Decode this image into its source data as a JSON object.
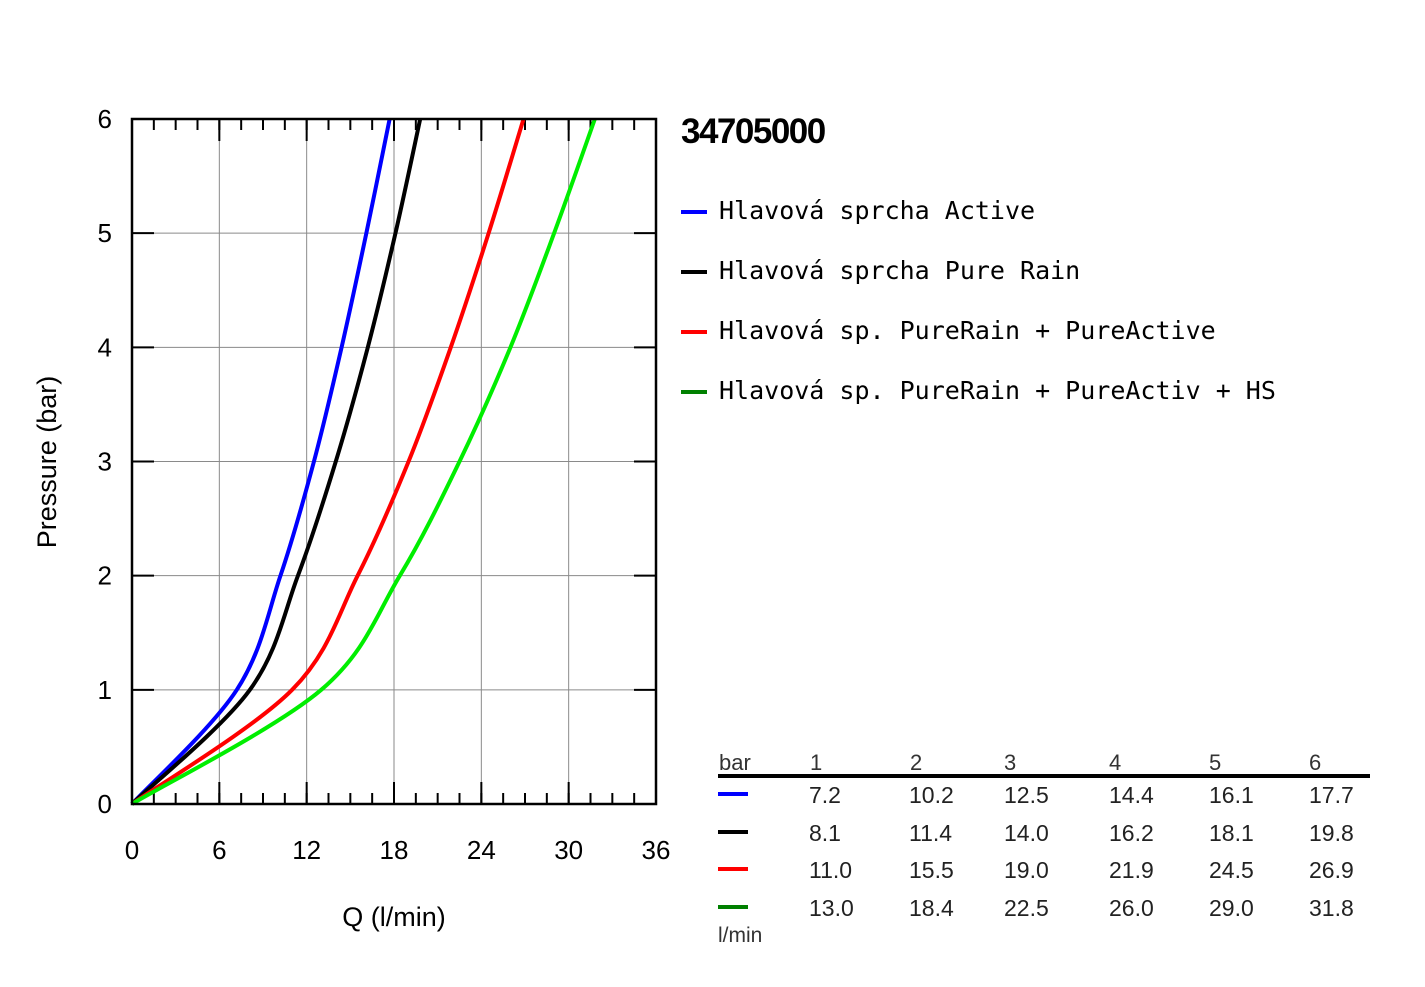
{
  "chart_data": {
    "type": "line",
    "title": "34705000",
    "xlabel": "Q (l/min)",
    "ylabel": "Pressure (bar)",
    "xlim": [
      0,
      36
    ],
    "ylim": [
      0,
      6
    ],
    "xticks": [
      "0",
      "6",
      "12",
      "18",
      "24",
      "30",
      "36"
    ],
    "yticks": [
      "0",
      "1",
      "2",
      "3",
      "4",
      "5",
      "6"
    ],
    "grid": true,
    "legend_position": "right",
    "series": [
      {
        "name": "Hlavová sprcha Active",
        "color": "#0000ff",
        "flow": [
          0,
          7.2,
          10.2,
          12.5,
          14.4,
          16.1,
          17.7
        ]
      },
      {
        "name": "Hlavová sprcha Pure Rain",
        "color": "#000000",
        "flow": [
          0,
          8.1,
          11.4,
          14.0,
          16.2,
          18.1,
          19.8
        ]
      },
      {
        "name": "Hlavová sp. PureRain + PureActive",
        "color": "#ff0000",
        "flow": [
          0,
          11.0,
          15.5,
          19.0,
          21.9,
          24.5,
          26.9
        ]
      },
      {
        "name": "Hlavová sp. PureRain + PureActiv + HS",
        "color": "#00ee00",
        "legend_color": "#008000",
        "flow": [
          0,
          13.0,
          18.4,
          22.5,
          26.0,
          29.0,
          31.8
        ]
      }
    ],
    "pressure": [
      0,
      1,
      2,
      3,
      4,
      5,
      6
    ]
  },
  "table": {
    "header_label": "bar",
    "columns": [
      "1",
      "2",
      "3",
      "4",
      "5",
      "6"
    ],
    "unit_label": "l/min",
    "rows": [
      {
        "color": "#0000ff",
        "values": [
          "7.2",
          "10.2",
          "12.5",
          "14.4",
          "16.1",
          "17.7"
        ]
      },
      {
        "color": "#000000",
        "values": [
          "8.1",
          "11.4",
          "14.0",
          "16.2",
          "18.1",
          "19.8"
        ]
      },
      {
        "color": "#ff0000",
        "values": [
          "11.0",
          "15.5",
          "19.0",
          "21.9",
          "24.5",
          "26.9"
        ]
      },
      {
        "color": "#008000",
        "values": [
          "13.0",
          "18.4",
          "22.5",
          "26.0",
          "29.0",
          "31.8"
        ]
      }
    ]
  }
}
